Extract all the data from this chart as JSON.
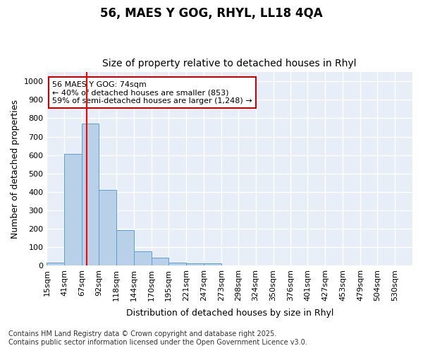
{
  "title1": "56, MAES Y GOG, RHYL, LL18 4QA",
  "title2": "Size of property relative to detached houses in Rhyl",
  "xlabel": "Distribution of detached houses by size in Rhyl",
  "ylabel": "Number of detached properties",
  "bar_color": "#b8d0e8",
  "bar_edge_color": "#5a9fd4",
  "bin_labels": [
    "15sqm",
    "41sqm",
    "67sqm",
    "92sqm",
    "118sqm",
    "144sqm",
    "170sqm",
    "195sqm",
    "221sqm",
    "247sqm",
    "273sqm",
    "298sqm",
    "324sqm",
    "350sqm",
    "376sqm",
    "401sqm",
    "427sqm",
    "453sqm",
    "479sqm",
    "504sqm",
    "530sqm"
  ],
  "bin_edges": [
    15,
    41,
    67,
    92,
    118,
    144,
    170,
    195,
    221,
    247,
    273,
    298,
    324,
    350,
    376,
    401,
    427,
    453,
    479,
    504,
    530
  ],
  "bar_heights": [
    15,
    605,
    770,
    410,
    190,
    75,
    40,
    15,
    10,
    10,
    0,
    0,
    0,
    0,
    0,
    0,
    0,
    0,
    0,
    0
  ],
  "red_line_x": 74,
  "ylim": [
    0,
    1050
  ],
  "yticks": [
    0,
    100,
    200,
    300,
    400,
    500,
    600,
    700,
    800,
    900,
    1000
  ],
  "annotation_text": "56 MAES Y GOG: 74sqm\n← 40% of detached houses are smaller (853)\n59% of semi-detached houses are larger (1,248) →",
  "annotation_box_facecolor": "#ffffff",
  "annotation_box_edgecolor": "#cc0000",
  "footer1": "Contains HM Land Registry data © Crown copyright and database right 2025.",
  "footer2": "Contains public sector information licensed under the Open Government Licence v3.0.",
  "fig_facecolor": "#ffffff",
  "axes_facecolor": "#e8eef8",
  "grid_color": "#ffffff",
  "title1_fontsize": 12,
  "title2_fontsize": 10,
  "axis_label_fontsize": 9,
  "tick_fontsize": 8,
  "annotation_fontsize": 8,
  "footer_fontsize": 7
}
